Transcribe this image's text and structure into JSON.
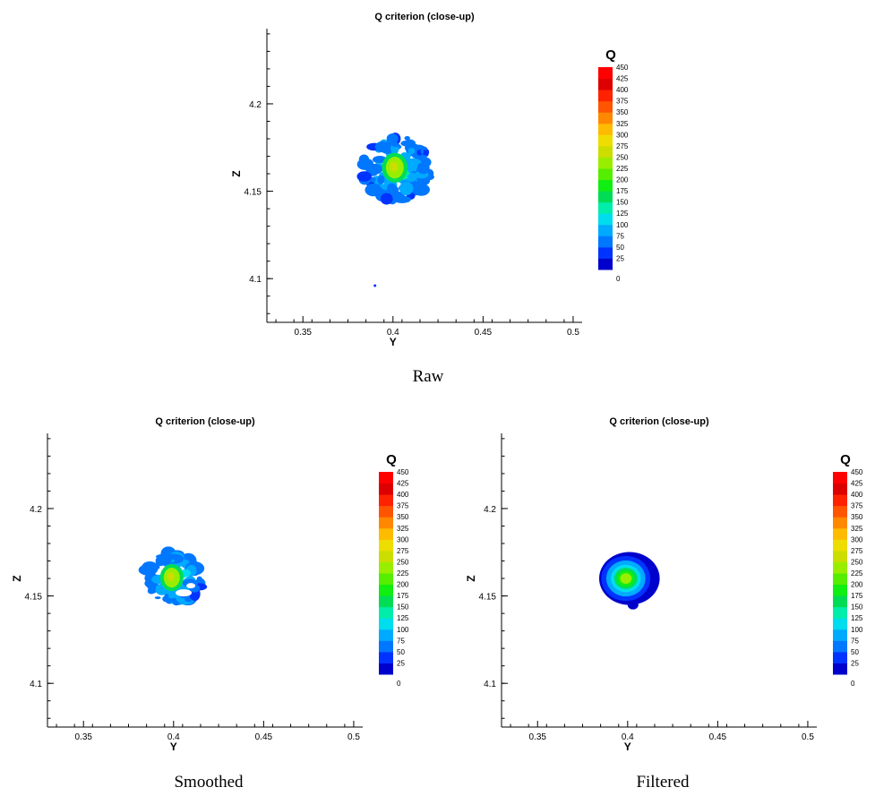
{
  "colormap": [
    "#0000cc",
    "#0033ff",
    "#0077ff",
    "#00aaff",
    "#00ddee",
    "#00eeaa",
    "#00dd55",
    "#11ee11",
    "#55ee00",
    "#99ee00",
    "#ccdd00",
    "#eedd00",
    "#ffbb00",
    "#ff8800",
    "#ff5500",
    "#ff2200",
    "#dd0000",
    "#ff0000"
  ],
  "chart_data": [
    {
      "type": "heatmap",
      "title": "Q criterion (close-up)",
      "caption": "Raw",
      "xlabel": "Y",
      "ylabel": "Z",
      "xlim": [
        0.33,
        0.505
      ],
      "ylim": [
        4.075,
        4.243
      ],
      "xticks": [
        0.35,
        0.4,
        0.45,
        0.5
      ],
      "xtick_labels": [
        "0.35",
        "0.4",
        "0.45",
        "0.5"
      ],
      "yticks": [
        4.1,
        4.15,
        4.2
      ],
      "ytick_labels": [
        "4.1",
        "4.15",
        "4.2"
      ],
      "colorbar": {
        "title": "Q",
        "levels": [
          450,
          425,
          400,
          375,
          350,
          325,
          300,
          275,
          250,
          225,
          200,
          175,
          150,
          125,
          100,
          75,
          50,
          25,
          0
        ]
      },
      "vortex": {
        "center_y": 0.402,
        "center_z": 4.163,
        "core_radius": 0.0055,
        "outer_radius": 0.018,
        "peak_q": 265,
        "noise": "high"
      }
    },
    {
      "type": "heatmap",
      "title": "Q criterion (close-up)",
      "caption": "Smoothed",
      "xlabel": "Y",
      "ylabel": "Z",
      "xlim": [
        0.33,
        0.505
      ],
      "ylim": [
        4.075,
        4.243
      ],
      "xticks": [
        0.35,
        0.4,
        0.45,
        0.5
      ],
      "xtick_labels": [
        "0.35",
        "0.4",
        "0.45",
        "0.5"
      ],
      "yticks": [
        4.1,
        4.15,
        4.2
      ],
      "ytick_labels": [
        "4.1",
        "4.15",
        "4.2"
      ],
      "colorbar": {
        "title": "Q",
        "levels": [
          450,
          425,
          400,
          375,
          350,
          325,
          300,
          275,
          250,
          225,
          200,
          175,
          150,
          125,
          100,
          75,
          50,
          25,
          0
        ]
      },
      "vortex": {
        "center_y": 0.4,
        "center_z": 4.16,
        "core_radius": 0.005,
        "outer_radius": 0.016,
        "peak_q": 250,
        "noise": "medium"
      }
    },
    {
      "type": "heatmap",
      "title": "Q criterion (close-up)",
      "caption": "Filtered",
      "xlabel": "Y",
      "ylabel": "Z",
      "xlim": [
        0.33,
        0.505
      ],
      "ylim": [
        4.075,
        4.243
      ],
      "xticks": [
        0.35,
        0.4,
        0.45,
        0.5
      ],
      "xtick_labels": [
        "0.35",
        "0.4",
        "0.45",
        "0.5"
      ],
      "yticks": [
        4.1,
        4.15,
        4.2
      ],
      "ytick_labels": [
        "4.1",
        "4.15",
        "4.2"
      ],
      "colorbar": {
        "title": "Q",
        "levels": [
          450,
          425,
          400,
          375,
          350,
          325,
          300,
          275,
          250,
          225,
          200,
          175,
          150,
          125,
          100,
          75,
          50,
          25,
          0
        ]
      },
      "vortex": {
        "center_y": 0.399,
        "center_z": 4.16,
        "core_radius": 0.006,
        "outer_radius": 0.016,
        "peak_q": 230,
        "noise": "none"
      }
    }
  ]
}
